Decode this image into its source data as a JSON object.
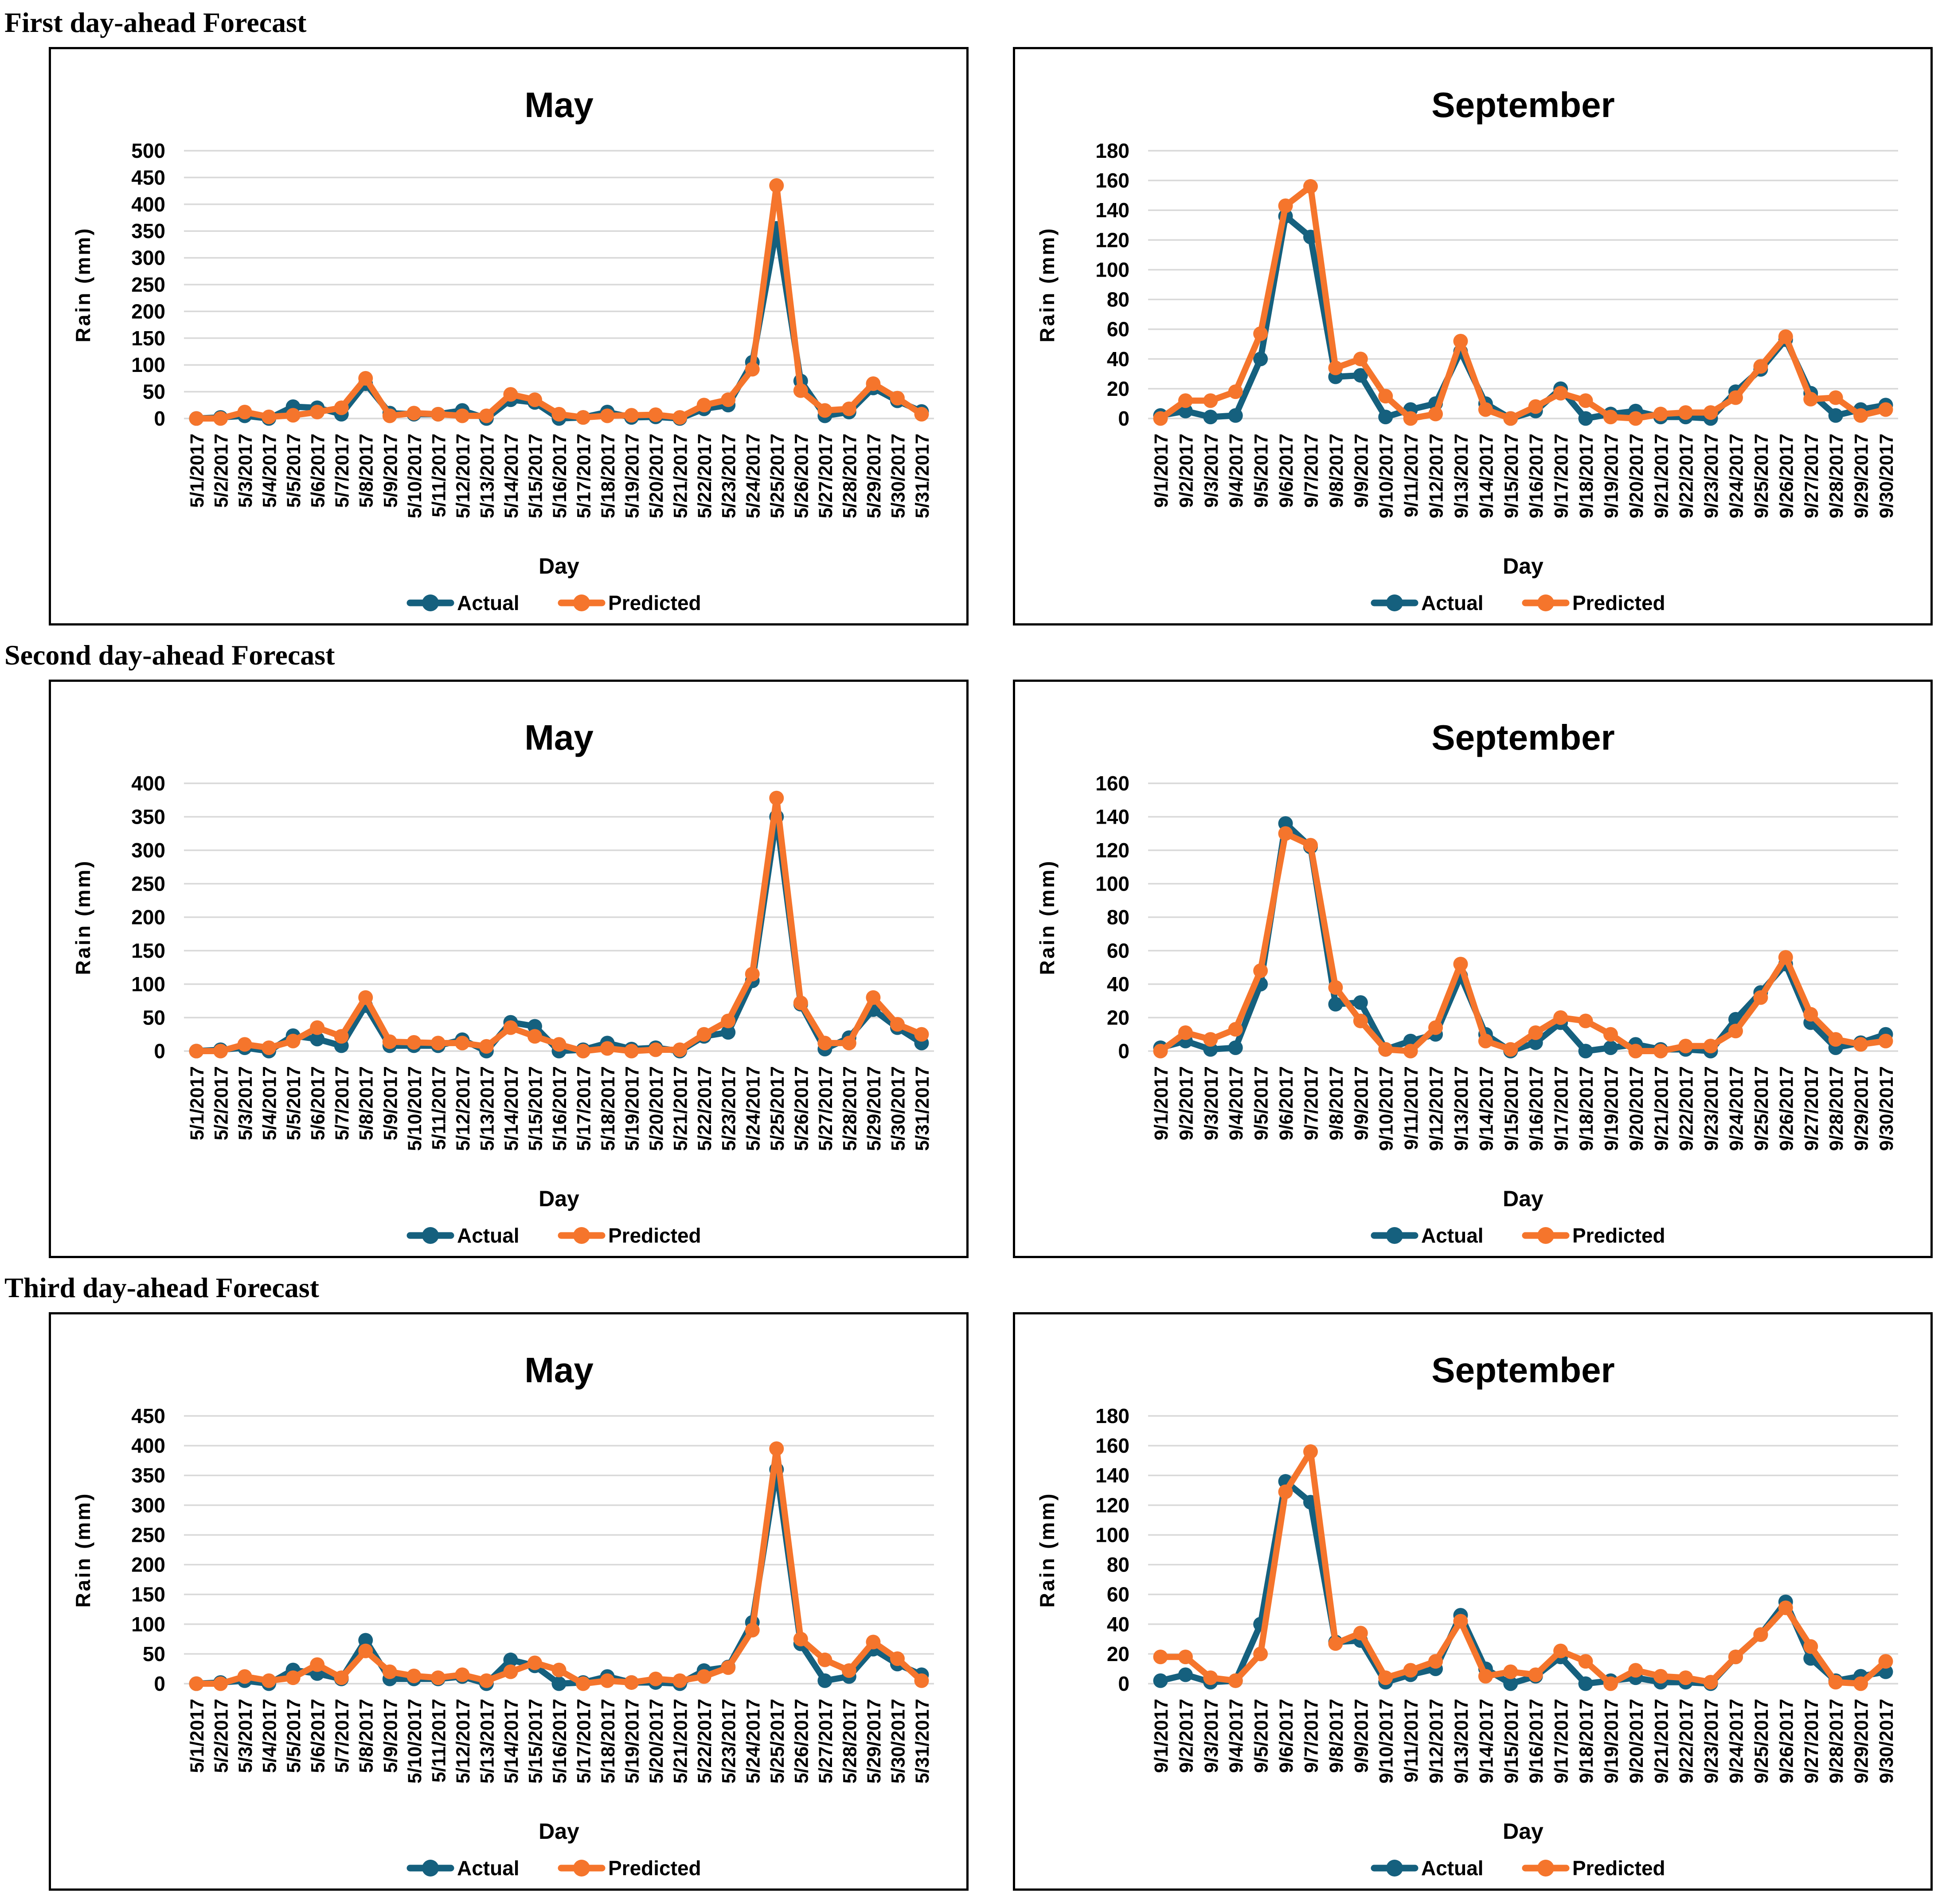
{
  "page": {
    "background": "#ffffff"
  },
  "colors": {
    "actual": "#15607E",
    "predicted": "#F5752C",
    "gridline": "#D9D9D9",
    "text": "#000000",
    "panel_border": "#000000"
  },
  "sections": [
    {
      "heading": "First day-ahead Forecast"
    },
    {
      "heading": "Second day-ahead Forecast"
    },
    {
      "heading": "Third day-ahead Forecast"
    }
  ],
  "chart_data": [
    {
      "section": 0,
      "type": "line",
      "title": "May",
      "xlabel": "Day",
      "ylabel": "Rain (mm)",
      "ylim": [
        0,
        500
      ],
      "ystep": 50,
      "grid": true,
      "legend_position": "bottom",
      "categories": [
        "5/1/2017",
        "5/2/2017",
        "5/3/2017",
        "5/4/2017",
        "5/5/2017",
        "5/6/2017",
        "5/7/2017",
        "5/8/2017",
        "5/9/2017",
        "5/10/2017",
        "5/11/2017",
        "5/12/2017",
        "5/13/2017",
        "5/14/2017",
        "5/15/2017",
        "5/16/2017",
        "5/17/2017",
        "5/18/2017",
        "5/19/2017",
        "5/20/2017",
        "5/21/2017",
        "5/22/2017",
        "5/23/2017",
        "5/24/2017",
        "5/25/2017",
        "5/26/2017",
        "5/27/2017",
        "5/28/2017",
        "5/29/2017",
        "5/30/2017",
        "5/31/2017"
      ],
      "series": [
        {
          "name": "Actual",
          "values": [
            0,
            2,
            5,
            0,
            22,
            20,
            8,
            65,
            10,
            8,
            8,
            15,
            0,
            35,
            30,
            0,
            2,
            12,
            2,
            3,
            0,
            18,
            25,
            105,
            355,
            70,
            5,
            12,
            57,
            33,
            13
          ]
        },
        {
          "name": "Predicted",
          "values": [
            0,
            0,
            12,
            3,
            6,
            12,
            20,
            75,
            5,
            10,
            8,
            5,
            5,
            45,
            35,
            8,
            2,
            5,
            6,
            7,
            2,
            25,
            35,
            92,
            435,
            52,
            15,
            18,
            65,
            38,
            8
          ]
        }
      ]
    },
    {
      "section": 0,
      "type": "line",
      "title": "September",
      "xlabel": "Day",
      "ylabel": "Rain (mm)",
      "ylim": [
        0,
        180
      ],
      "ystep": 20,
      "grid": true,
      "legend_position": "bottom",
      "categories": [
        "9/1/2017",
        "9/2/2017",
        "9/3/2017",
        "9/4/2017",
        "9/5/2017",
        "9/6/2017",
        "9/7/2017",
        "9/8/2017",
        "9/9/2017",
        "9/10/2017",
        "9/11/2017",
        "9/12/2017",
        "9/13/2017",
        "9/14/2017",
        "9/15/2017",
        "9/16/2017",
        "9/17/2017",
        "9/18/2017",
        "9/19/2017",
        "9/20/2017",
        "9/21/2017",
        "9/22/2017",
        "9/23/2017",
        "9/24/2017",
        "9/25/2017",
        "9/26/2017",
        "9/27/2017",
        "9/28/2017",
        "9/29/2017",
        "9/30/2017"
      ],
      "series": [
        {
          "name": "Actual",
          "values": [
            2,
            5,
            1,
            2,
            40,
            136,
            122,
            28,
            29,
            1,
            6,
            10,
            45,
            10,
            0,
            5,
            20,
            0,
            3,
            5,
            1,
            1,
            0,
            18,
            33,
            53,
            17,
            2,
            6,
            9
          ]
        },
        {
          "name": "Predicted",
          "values": [
            0,
            12,
            12,
            18,
            57,
            143,
            156,
            34,
            40,
            15,
            0,
            3,
            52,
            6,
            0,
            8,
            17,
            12,
            1,
            0,
            3,
            4,
            4,
            14,
            35,
            55,
            13,
            14,
            2,
            6
          ]
        }
      ]
    },
    {
      "section": 1,
      "type": "line",
      "title": "May",
      "xlabel": "Day",
      "ylabel": "Rain (mm)",
      "ylim": [
        0,
        400
      ],
      "ystep": 50,
      "grid": true,
      "legend_position": "bottom",
      "categories": [
        "5/1/2017",
        "5/2/2017",
        "5/3/2017",
        "5/4/2017",
        "5/5/2017",
        "5/6/2017",
        "5/7/2017",
        "5/8/2017",
        "5/9/2017",
        "5/10/2017",
        "5/11/2017",
        "5/12/2017",
        "5/13/2017",
        "5/14/2017",
        "5/15/2017",
        "5/16/2017",
        "5/17/2017",
        "5/18/2017",
        "5/19/2017",
        "5/20/2017",
        "5/21/2017",
        "5/22/2017",
        "5/23/2017",
        "5/24/2017",
        "5/25/2017",
        "5/26/2017",
        "5/27/2017",
        "5/28/2017",
        "5/29/2017",
        "5/30/2017",
        "5/31/2017"
      ],
      "series": [
        {
          "name": "Actual",
          "values": [
            0,
            2,
            5,
            0,
            23,
            18,
            8,
            68,
            8,
            8,
            8,
            17,
            0,
            43,
            37,
            0,
            2,
            12,
            3,
            5,
            0,
            22,
            28,
            105,
            350,
            70,
            3,
            20,
            62,
            35,
            12
          ]
        },
        {
          "name": "Predicted",
          "values": [
            0,
            0,
            10,
            5,
            15,
            35,
            22,
            80,
            14,
            13,
            12,
            12,
            7,
            35,
            22,
            10,
            0,
            4,
            0,
            2,
            2,
            25,
            45,
            115,
            378,
            72,
            12,
            12,
            80,
            40,
            25
          ]
        }
      ]
    },
    {
      "section": 1,
      "type": "line",
      "title": "September",
      "xlabel": "Day",
      "ylabel": "Rain (mm)",
      "ylim": [
        0,
        160
      ],
      "ystep": 20,
      "grid": true,
      "legend_position": "bottom",
      "categories": [
        "9/1/2017",
        "9/2/2017",
        "9/3/2017",
        "9/4/2017",
        "9/5/2017",
        "9/6/2017",
        "9/7/2017",
        "9/8/2017",
        "9/9/2017",
        "9/10/2017",
        "9/11/2017",
        "9/12/2017",
        "9/13/2017",
        "9/14/2017",
        "9/15/2017",
        "9/16/2017",
        "9/17/2017",
        "9/18/2017",
        "9/19/2017",
        "9/20/2017",
        "9/21/2017",
        "9/22/2017",
        "9/23/2017",
        "9/24/2017",
        "9/25/2017",
        "9/26/2017",
        "9/27/2017",
        "9/28/2017",
        "9/29/2017",
        "9/30/2017"
      ],
      "series": [
        {
          "name": "Actual",
          "values": [
            2,
            6,
            1,
            2,
            40,
            136,
            122,
            28,
            29,
            1,
            6,
            10,
            45,
            10,
            0,
            5,
            17,
            0,
            2,
            4,
            1,
            1,
            0,
            19,
            35,
            52,
            17,
            2,
            5,
            10
          ]
        },
        {
          "name": "Predicted",
          "values": [
            0,
            11,
            7,
            13,
            48,
            130,
            123,
            38,
            18,
            1,
            0,
            14,
            52,
            6,
            1,
            11,
            20,
            18,
            10,
            0,
            0,
            3,
            3,
            12,
            32,
            56,
            22,
            7,
            4,
            6
          ]
        }
      ]
    },
    {
      "section": 2,
      "type": "line",
      "title": "May",
      "xlabel": "Day",
      "ylabel": "Rain (mm)",
      "ylim": [
        0,
        450
      ],
      "ystep": 50,
      "grid": true,
      "legend_position": "bottom",
      "categories": [
        "5/1/2017",
        "5/2/2017",
        "5/3/2017",
        "5/4/2017",
        "5/5/2017",
        "5/6/2017",
        "5/7/2017",
        "5/8/2017",
        "5/9/2017",
        "5/10/2017",
        "5/11/2017",
        "5/12/2017",
        "5/13/2017",
        "5/14/2017",
        "5/15/2017",
        "5/16/2017",
        "5/17/2017",
        "5/18/2017",
        "5/19/2017",
        "5/20/2017",
        "5/21/2017",
        "5/22/2017",
        "5/23/2017",
        "5/24/2017",
        "5/25/2017",
        "5/26/2017",
        "5/27/2017",
        "5/28/2017",
        "5/29/2017",
        "5/30/2017",
        "5/31/2017"
      ],
      "series": [
        {
          "name": "Actual",
          "values": [
            0,
            2,
            5,
            0,
            23,
            17,
            8,
            73,
            8,
            8,
            8,
            12,
            0,
            40,
            30,
            0,
            2,
            12,
            2,
            2,
            0,
            22,
            28,
            103,
            360,
            67,
            5,
            12,
            58,
            33,
            15
          ]
        },
        {
          "name": "Predicted",
          "values": [
            0,
            0,
            12,
            5,
            10,
            32,
            10,
            55,
            20,
            13,
            10,
            15,
            5,
            20,
            35,
            23,
            0,
            5,
            2,
            8,
            5,
            12,
            27,
            90,
            395,
            75,
            40,
            22,
            70,
            42,
            5
          ]
        }
      ]
    },
    {
      "section": 2,
      "type": "line",
      "title": "September",
      "xlabel": "Day",
      "ylabel": "Rain (mm)",
      "ylim": [
        0,
        180
      ],
      "ystep": 20,
      "grid": true,
      "legend_position": "bottom",
      "categories": [
        "9/1/2017",
        "9/2/2017",
        "9/3/2017",
        "9/4/2017",
        "9/5/2017",
        "9/6/2017",
        "9/7/2017",
        "9/8/2017",
        "9/9/2017",
        "9/10/2017",
        "9/11/2017",
        "9/12/2017",
        "9/13/2017",
        "9/14/2017",
        "9/15/2017",
        "9/16/2017",
        "9/17/2017",
        "9/18/2017",
        "9/19/2017",
        "9/20/2017",
        "9/21/2017",
        "9/22/2017",
        "9/23/2017",
        "9/24/2017",
        "9/25/2017",
        "9/26/2017",
        "9/27/2017",
        "9/28/2017",
        "9/29/2017",
        "9/30/2017"
      ],
      "series": [
        {
          "name": "Actual",
          "values": [
            2,
            6,
            1,
            2,
            40,
            136,
            122,
            28,
            29,
            1,
            6,
            10,
            46,
            10,
            0,
            5,
            18,
            0,
            2,
            4,
            1,
            1,
            0,
            18,
            33,
            55,
            17,
            2,
            5,
            8
          ]
        },
        {
          "name": "Predicted",
          "values": [
            18,
            18,
            4,
            2,
            20,
            129,
            156,
            27,
            34,
            4,
            9,
            15,
            42,
            5,
            8,
            6,
            22,
            15,
            0,
            9,
            5,
            4,
            1,
            18,
            33,
            51,
            25,
            1,
            0,
            15
          ]
        }
      ]
    }
  ]
}
